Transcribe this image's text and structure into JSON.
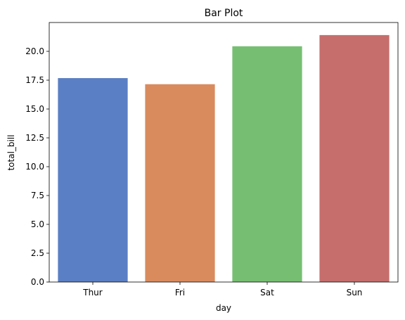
{
  "chart_data": {
    "type": "bar",
    "title": "Bar Plot",
    "xlabel": "day",
    "ylabel": "total_bill",
    "categories": [
      "Thur",
      "Fri",
      "Sat",
      "Sun"
    ],
    "values": [
      17.68,
      17.15,
      20.44,
      21.41
    ],
    "colors": [
      "#5b7fc4",
      "#d98b5e",
      "#76bf72",
      "#c66e6c"
    ],
    "ylim": [
      0,
      22.5
    ],
    "yticks": [
      0.0,
      2.5,
      5.0,
      7.5,
      10.0,
      12.5,
      15.0,
      17.5,
      20.0
    ],
    "ytick_labels": [
      "0.0",
      "2.5",
      "5.0",
      "7.5",
      "10.0",
      "12.5",
      "15.0",
      "17.5",
      "20.0"
    ],
    "grid": false,
    "legend": "none"
  }
}
